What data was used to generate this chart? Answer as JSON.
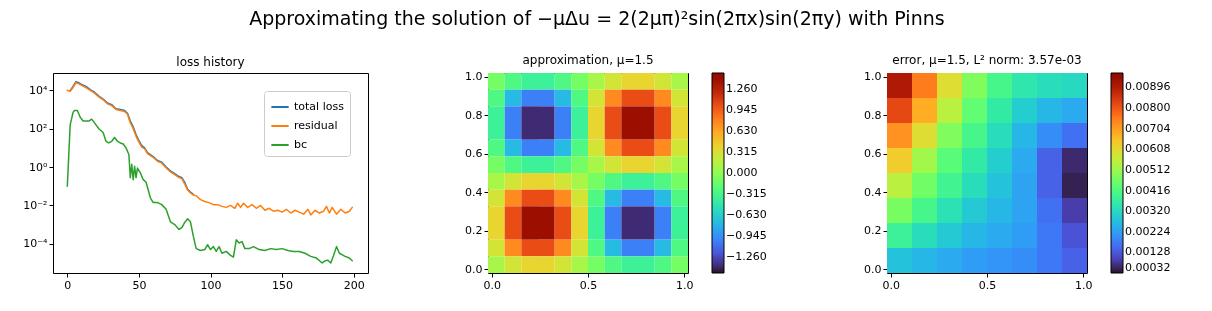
{
  "chart_data": [
    {
      "type": "line",
      "title": "loss history",
      "annotations": [
        "Approximating the solution of −μΔu = 2(2μπ)²sin(2πx)sin(2πy) with Pinns"
      ],
      "log": "y",
      "legend": "top right",
      "grid": false,
      "xlim": [
        -10,
        210
      ],
      "xticks": [
        0,
        50,
        100,
        150,
        200
      ],
      "ylim": [
        3e-06,
        80000.0
      ],
      "yticks": [
        {
          "value": 0.0001,
          "label": "10⁻⁴"
        },
        {
          "value": 0.01,
          "label": "10⁻²"
        },
        {
          "value": 1,
          "label": "10⁰"
        },
        {
          "value": 100,
          "label": "10²"
        },
        {
          "value": 10000,
          "label": "10⁴"
        }
      ],
      "series": [
        {
          "name": "total loss",
          "color": "#1f77b4",
          "x": [
            2,
            4,
            6,
            8,
            10,
            13,
            16,
            19,
            22,
            25,
            28,
            31,
            34,
            37,
            40,
            42,
            44,
            46,
            48,
            50,
            52,
            54,
            56,
            58,
            60,
            63,
            66,
            69,
            72,
            75,
            78,
            80,
            82,
            84,
            86,
            88
          ],
          "values": [
            9500.0,
            16000.0,
            28000.0,
            25000.0,
            20000.0,
            16000.0,
            11000.0,
            8000.0,
            5000.0,
            3500.0,
            2200.0,
            1800.0,
            1100.0,
            1000.0,
            890,
            630,
            250,
            125,
            50,
            24,
            13,
            10,
            5.6,
            4.5,
            3.5,
            2.2,
            1.8,
            1,
            0.63,
            0.45,
            0.32,
            0.28,
            0.16,
            0.07,
            0.05,
            0.038
          ]
        },
        {
          "name": "residual",
          "color": "#ff7f0e",
          "x": [
            0,
            2,
            4,
            6,
            8,
            10,
            13,
            16,
            19,
            22,
            25,
            28,
            31,
            34,
            37,
            40,
            42,
            44,
            46,
            48,
            50,
            52,
            54,
            56,
            58,
            60,
            63,
            66,
            69,
            72,
            75,
            78,
            80,
            82,
            84,
            86,
            88,
            90,
            93,
            96,
            99,
            102,
            105,
            108,
            111,
            114,
            117,
            119,
            121,
            123,
            126,
            129,
            132,
            135,
            138,
            141,
            144,
            147,
            150,
            153,
            156,
            159,
            162,
            165,
            168,
            170,
            173,
            176,
            179,
            181,
            183,
            185,
            188,
            191,
            194,
            197,
            199
          ],
          "values": [
            10000.0,
            8900.0,
            14000.0,
            25000.0,
            22000.0,
            18000.0,
            14000.0,
            10000.0,
            7100.0,
            4500.0,
            3200.0,
            2000.0,
            1600.0,
            1000.0,
            890,
            790,
            560,
            200,
            100,
            40,
            20,
            11,
            8.9,
            5,
            4,
            3.2,
            2,
            1.6,
            0.89,
            0.56,
            0.4,
            0.28,
            0.25,
            0.13,
            0.063,
            0.045,
            0.035,
            0.032,
            0.02,
            0.016,
            0.014,
            0.011,
            0.011,
            0.0089,
            0.0079,
            0.01,
            0.0071,
            0.013,
            0.0079,
            0.013,
            0.0079,
            0.011,
            0.0071,
            0.01,
            0.0056,
            0.0071,
            0.005,
            0.0056,
            0.0045,
            0.0063,
            0.004,
            0.0056,
            0.0045,
            0.0035,
            0.0063,
            0.0032,
            0.0056,
            0.004,
            0.005,
            0.0089,
            0.004,
            0.0079,
            0.0035,
            0.0063,
            0.004,
            0.005,
            0.0079
          ]
        },
        {
          "name": "bc",
          "color": "#2ca02c",
          "x": [
            0,
            2,
            4,
            5,
            7,
            9,
            11,
            13,
            15,
            17,
            19,
            22,
            25,
            27,
            29,
            31,
            33,
            35,
            37,
            39,
            41,
            43,
            44,
            45,
            46,
            47,
            48,
            49,
            51,
            53,
            55,
            58,
            60,
            63,
            66,
            69,
            72,
            75,
            78,
            80,
            82,
            84,
            86,
            88,
            90,
            93,
            96,
            98,
            100,
            102,
            104,
            106,
            108,
            111,
            114,
            116,
            118,
            120,
            122,
            124,
            127,
            130,
            134,
            138,
            142,
            146,
            150,
            154,
            158,
            162,
            166,
            170,
            174,
            178,
            180,
            182,
            184,
            186,
            188,
            190,
            194,
            197,
            199
          ],
          "values": [
            0.1,
            158,
            708,
            891,
            891,
            398,
            251,
            251,
            251,
            316,
            200,
            100,
            63,
            22,
            18,
            22,
            35,
            22,
            18,
            16,
            10,
            4.5,
            0.28,
            1.4,
            0.22,
            1.1,
            0.28,
            0.89,
            0.5,
            0.22,
            0.16,
            0.025,
            0.014,
            0.014,
            0.011,
            0.0063,
            0.0014,
            0.001,
            0.00056,
            0.0007,
            0.0013,
            0.002,
            0.0014,
            0.00025,
            5.6e-05,
            4.5e-05,
            5e-05,
            8.9e-05,
            5e-05,
            7.1e-05,
            4e-05,
            7.1e-05,
            3.2e-05,
            4e-05,
            2.5e-05,
            2e-05,
            0.00016,
            0.00011,
            0.00013,
            5.6e-05,
            5.6e-05,
            7.1e-05,
            5e-05,
            4.5e-05,
            5.6e-05,
            5e-05,
            5.6e-05,
            4.5e-05,
            4e-05,
            4e-05,
            3.2e-05,
            2.2e-05,
            1.8e-05,
            1e-05,
            1.3e-05,
            1.4e-05,
            1e-05,
            2.5e-05,
            7.1e-05,
            3.2e-05,
            2.2e-05,
            1.8e-05,
            1.3e-05
          ]
        }
      ]
    },
    {
      "type": "heatmap",
      "title": "approximation, μ=1.5",
      "xlim": [
        -0.02,
        1.02
      ],
      "ylim": [
        -0.02,
        1.02
      ],
      "xticks": [
        {
          "value": 0,
          "label": "0.0"
        },
        {
          "value": 0.5,
          "label": "0.5"
        },
        {
          "value": 1,
          "label": "1.0"
        }
      ],
      "yticks": [
        {
          "value": 0,
          "label": "0.0"
        },
        {
          "value": 0.2,
          "label": "0.2"
        },
        {
          "value": 0.4,
          "label": "0.4"
        },
        {
          "value": 0.6,
          "label": "0.6"
        },
        {
          "value": 0.8,
          "label": "0.8"
        },
        {
          "value": 1,
          "label": "1.0"
        }
      ],
      "clim": [
        -1.5,
        1.5
      ],
      "cticks": [
        {
          "value": -1.26,
          "label": "−1.260"
        },
        {
          "value": -0.945,
          "label": "−0.945"
        },
        {
          "value": -0.63,
          "label": "−0.630"
        },
        {
          "value": -0.315,
          "label": "−0.315"
        },
        {
          "value": 0,
          "label": "0.000"
        },
        {
          "value": 0.315,
          "label": "0.315"
        },
        {
          "value": 0.63,
          "label": "0.630"
        },
        {
          "value": 0.945,
          "label": "0.945"
        },
        {
          "value": 1.26,
          "label": "1.260"
        }
      ],
      "cells": [
        [
          -0.1,
          -0.27,
          -0.38,
          -0.38,
          -0.27,
          -0.1,
          0.1,
          0.27,
          0.38,
          0.38,
          0.27,
          0.1
        ],
        [
          -0.27,
          -0.75,
          -1.02,
          -1.02,
          -0.75,
          -0.27,
          0.27,
          0.75,
          1.02,
          1.02,
          0.75,
          0.27
        ],
        [
          -0.38,
          -1.02,
          -1.4,
          -1.4,
          -1.02,
          -0.38,
          0.38,
          1.02,
          1.4,
          1.4,
          1.02,
          0.38
        ],
        [
          -0.38,
          -1.02,
          -1.4,
          -1.4,
          -1.02,
          -0.38,
          0.38,
          1.02,
          1.4,
          1.4,
          1.02,
          0.38
        ],
        [
          -0.27,
          -0.75,
          -1.02,
          -1.02,
          -0.75,
          -0.27,
          0.27,
          0.75,
          1.02,
          1.02,
          0.75,
          0.27
        ],
        [
          -0.1,
          -0.27,
          -0.38,
          -0.38,
          -0.27,
          -0.1,
          0.1,
          0.27,
          0.38,
          0.38,
          0.27,
          0.1
        ],
        [
          0.1,
          0.27,
          0.38,
          0.38,
          0.27,
          0.1,
          -0.1,
          -0.27,
          -0.38,
          -0.38,
          -0.27,
          -0.1
        ],
        [
          0.27,
          0.75,
          1.02,
          1.02,
          0.75,
          0.27,
          -0.27,
          -0.75,
          -1.02,
          -1.02,
          -0.75,
          -0.27
        ],
        [
          0.38,
          1.02,
          1.4,
          1.4,
          1.02,
          0.38,
          -0.38,
          -1.02,
          -1.4,
          -1.4,
          -1.02,
          -0.38
        ],
        [
          0.38,
          1.02,
          1.4,
          1.4,
          1.02,
          0.38,
          -0.38,
          -1.02,
          -1.4,
          -1.4,
          -1.02,
          -0.38
        ],
        [
          0.27,
          0.75,
          1.02,
          1.02,
          0.75,
          0.27,
          -0.27,
          -0.75,
          -1.02,
          -1.02,
          -0.75,
          -0.27
        ],
        [
          0.1,
          0.27,
          0.38,
          0.38,
          0.27,
          0.1,
          -0.1,
          -0.27,
          -0.38,
          -0.38,
          -0.27,
          -0.1
        ]
      ]
    },
    {
      "type": "heatmap",
      "title": "error, μ=1.5, L² norm: 3.57e-03",
      "xlim": [
        -0.02,
        1.02
      ],
      "ylim": [
        -0.02,
        1.02
      ],
      "xticks": [
        {
          "value": 0,
          "label": "0.0"
        },
        {
          "value": 0.5,
          "label": "0.5"
        },
        {
          "value": 1,
          "label": "1.0"
        }
      ],
      "yticks": [
        {
          "value": 0,
          "label": "0.0"
        },
        {
          "value": 0.2,
          "label": "0.2"
        },
        {
          "value": 0.4,
          "label": "0.4"
        },
        {
          "value": 0.6,
          "label": "0.6"
        },
        {
          "value": 0.8,
          "label": "0.8"
        },
        {
          "value": 1,
          "label": "1.0"
        }
      ],
      "clim": [
        0.00032,
        0.00963
      ],
      "cticks": [
        0.00032,
        0.00128,
        0.00224,
        {
          "value": 0.0032,
          "label": "0.00320"
        },
        0.00416,
        0.00512,
        0.00608,
        0.00704,
        {
          "value": 0.008,
          "label": "0.00800"
        },
        0.00896
      ],
      "cells": [
        [
          0.009,
          0.0075,
          0.006,
          0.0048,
          0.004,
          0.0035,
          0.0033,
          0.0032
        ],
        [
          0.0082,
          0.0068,
          0.0055,
          0.0044,
          0.0036,
          0.003,
          0.0026,
          0.0024
        ],
        [
          0.0072,
          0.006,
          0.0048,
          0.004,
          0.0033,
          0.0026,
          0.002,
          0.0016
        ],
        [
          0.0063,
          0.0052,
          0.0043,
          0.0036,
          0.003,
          0.0024,
          0.0014,
          0.0006
        ],
        [
          0.0055,
          0.0046,
          0.0039,
          0.0033,
          0.0028,
          0.0023,
          0.0014,
          0.0005
        ],
        [
          0.0047,
          0.004,
          0.0034,
          0.0029,
          0.0026,
          0.0023,
          0.0016,
          0.0009
        ],
        [
          0.0038,
          0.0033,
          0.0029,
          0.0026,
          0.0024,
          0.0022,
          0.0017,
          0.0012
        ],
        [
          0.0028,
          0.0026,
          0.0024,
          0.0022,
          0.0021,
          0.002,
          0.0017,
          0.0014
        ]
      ]
    }
  ]
}
